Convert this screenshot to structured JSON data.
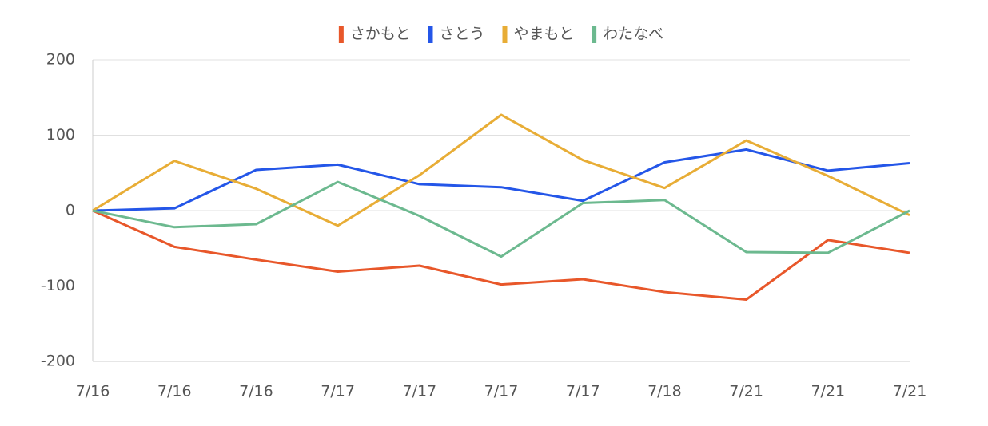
{
  "chart_data": {
    "type": "line",
    "categories": [
      "7/16",
      "7/16",
      "7/16",
      "7/17",
      "7/17",
      "7/17",
      "7/17",
      "7/18",
      "7/21",
      "7/21",
      "7/21"
    ],
    "series": [
      {
        "name": "さかもと",
        "color": "#e8572a",
        "values": [
          0,
          -48,
          -65,
          -81,
          -73,
          -98,
          -91,
          -108,
          -118,
          -39,
          -56
        ]
      },
      {
        "name": "さとう",
        "color": "#2456e8",
        "values": [
          0,
          3,
          54,
          61,
          35,
          31,
          13,
          64,
          81,
          53,
          63
        ]
      },
      {
        "name": "やまもと",
        "color": "#e8ad36",
        "values": [
          0,
          66,
          29,
          -20,
          47,
          127,
          67,
          30,
          93,
          46,
          -6
        ]
      },
      {
        "name": "わたなべ",
        "color": "#6cb98f",
        "values": [
          0,
          -22,
          -18,
          38,
          -7,
          -61,
          10,
          14,
          -55,
          -56,
          0
        ]
      }
    ],
    "ylim": [
      -200,
      200
    ],
    "yticks": [
      -200,
      -100,
      0,
      100,
      200
    ],
    "grid": true,
    "legend": "top"
  }
}
